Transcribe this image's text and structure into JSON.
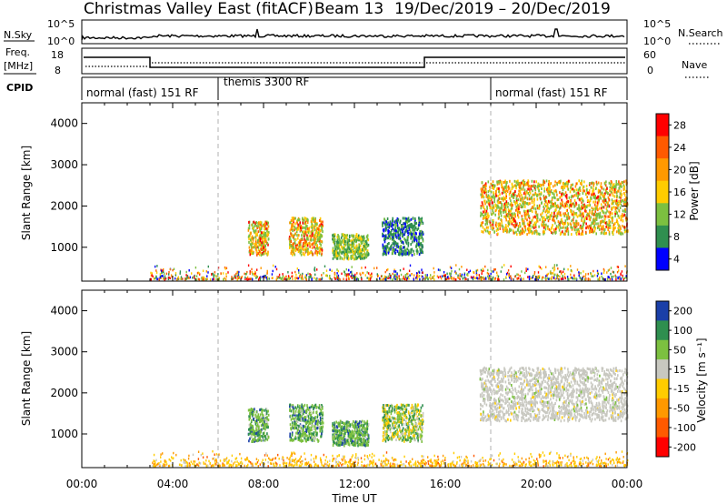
{
  "header": {
    "title": "Christmas Valley East (fitACF)",
    "beam": "Beam 13",
    "dates": "19/Dec/2019 – 20/Dec/2019"
  },
  "strips": {
    "nsky_label": "N.Sky",
    "nsky_ticks": [
      "10^5",
      "10^0"
    ],
    "nsearch_label": "N.Search",
    "nsearch_ticks": [
      "10^5",
      "10^0"
    ],
    "freq_label": "Freq.",
    "freq_unit": "[MHz]",
    "freq_ticks": [
      "18",
      "8"
    ],
    "nave_label": "Nave",
    "nave_ticks": [
      "60",
      "0"
    ],
    "cpid_label": "CPID"
  },
  "chart_data": [
    {
      "type": "heatmap",
      "name": "power",
      "ylabel": "Slant Range [km]",
      "yticks": [
        1000,
        2000,
        3000,
        4000
      ],
      "ylim": [
        180,
        4500
      ],
      "xlim": [
        0,
        24
      ],
      "colorbar_label": "Power [dB]",
      "colorbar_ticks": [
        "28",
        "24",
        "20",
        "16",
        "12",
        "8",
        "4"
      ],
      "colorbar_colors": [
        "#ff0000",
        "#ff5a00",
        "#ff9900",
        "#ffcc00",
        "#7cc040",
        "#2f8f4f",
        "#0000ff"
      ],
      "mode_labels": [
        "normal (fast) 151 RF",
        "themis 3300 RF",
        "normal (fast) 151 RF"
      ],
      "mode_boundaries_hours": [
        6,
        18
      ],
      "scatter_regions": [
        {
          "hours": [
            7.3,
            8.2
          ],
          "range_km": [
            800,
            1600
          ],
          "level": "high"
        },
        {
          "hours": [
            9.1,
            10.6
          ],
          "range_km": [
            800,
            1700
          ],
          "level": "high"
        },
        {
          "hours": [
            11.0,
            12.6
          ],
          "range_km": [
            700,
            1300
          ],
          "level": "medium"
        },
        {
          "hours": [
            13.2,
            15.0
          ],
          "range_km": [
            800,
            1700
          ],
          "level": "low"
        },
        {
          "hours": [
            17.5,
            24.0
          ],
          "range_km": [
            1300,
            2600
          ],
          "level": "high"
        }
      ]
    },
    {
      "type": "heatmap",
      "name": "velocity",
      "ylabel": "Slant Range [km]",
      "yticks": [
        1000,
        2000,
        3000,
        4000
      ],
      "ylim": [
        180,
        4500
      ],
      "xlim": [
        0,
        24
      ],
      "colorbar_label": "Velocity [m s⁻¹]",
      "colorbar_ticks": [
        "200",
        "100",
        "50",
        "15",
        "-15",
        "-50",
        "-100",
        "-200"
      ],
      "colorbar_colors": [
        "#1a3fa8",
        "#2f8f4f",
        "#7cc040",
        "#c8c8c0",
        "#ffcc00",
        "#ff9900",
        "#ff5a00",
        "#ff0000"
      ],
      "xlabel": "Time UT",
      "xticks": [
        "00:00",
        "04:00",
        "08:00",
        "12:00",
        "16:00",
        "20:00",
        "00:00"
      ],
      "scatter_regions": [
        {
          "hours": [
            7.3,
            8.2
          ],
          "range_km": [
            800,
            1600
          ],
          "level": "positive"
        },
        {
          "hours": [
            9.1,
            10.6
          ],
          "range_km": [
            800,
            1700
          ],
          "level": "positive"
        },
        {
          "hours": [
            11.0,
            12.6
          ],
          "range_km": [
            700,
            1300
          ],
          "level": "positive"
        },
        {
          "hours": [
            13.2,
            15.0
          ],
          "range_km": [
            800,
            1700
          ],
          "level": "mixed"
        },
        {
          "hours": [
            17.5,
            24.0
          ],
          "range_km": [
            1300,
            2600
          ],
          "level": "near-zero"
        }
      ]
    }
  ]
}
